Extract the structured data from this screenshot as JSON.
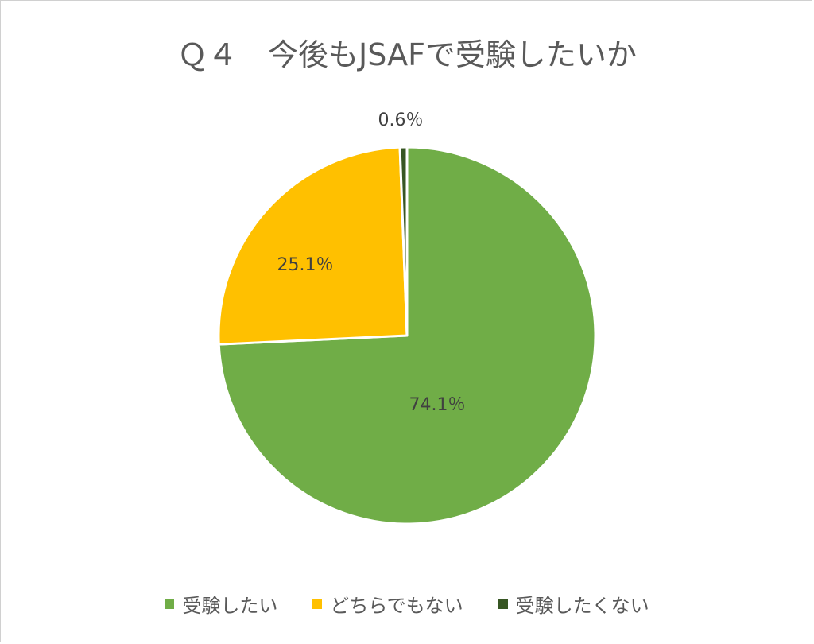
{
  "chart_data": {
    "type": "pie",
    "title": "Ｑ４　今後もJSAFで受験したいか",
    "slices": [
      {
        "name": "受験したい",
        "value": 74.1,
        "label": "74.1％",
        "color": "#70ad47"
      },
      {
        "name": "どちらでもない",
        "value": 25.1,
        "label": "25.1％",
        "color": "#ffc000"
      },
      {
        "name": "受験したくない",
        "value": 0.6,
        "label": "0.6％",
        "color": "#375623"
      }
    ],
    "legend_position": "bottom"
  }
}
